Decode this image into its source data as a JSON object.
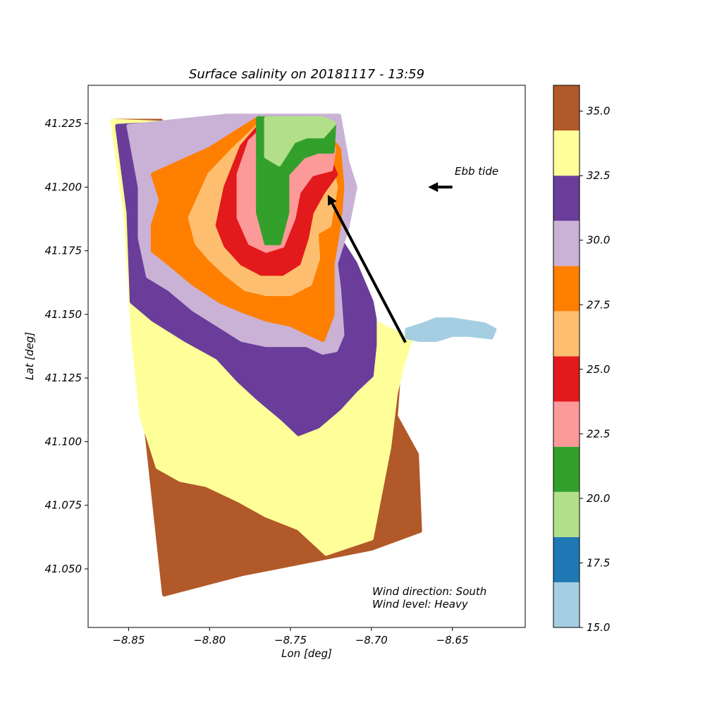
{
  "chart_data": {
    "type": "scatter",
    "title": "Surface salinity on 20181117 - 13:59",
    "xlabel": "Lon [deg]",
    "ylabel": "Lat [deg]",
    "xlim": [
      -8.875,
      -8.605
    ],
    "ylim": [
      41.027,
      41.24
    ],
    "xticks": [
      -8.85,
      -8.8,
      -8.75,
      -8.7,
      -8.65
    ],
    "xtick_labels": [
      "−8.85",
      "−8.80",
      "−8.75",
      "−8.70",
      "−8.65"
    ],
    "yticks": [
      41.05,
      41.075,
      41.1,
      41.125,
      41.15,
      41.175,
      41.2,
      41.225
    ],
    "ytick_labels": [
      "41.050",
      "41.075",
      "41.100",
      "41.125",
      "41.150",
      "41.175",
      "41.200",
      "41.225"
    ],
    "colorbar": {
      "ticks": [
        15.0,
        17.5,
        20.0,
        22.5,
        25.0,
        27.5,
        30.0,
        32.5,
        35.0
      ],
      "tick_labels": [
        "15.0",
        "17.5",
        "20.0",
        "22.5",
        "25.0",
        "27.5",
        "30.0",
        "32.5",
        "35.0"
      ],
      "bins": [
        {
          "from": 15.0,
          "to": 16.75,
          "color": "#a6cee3"
        },
        {
          "from": 16.75,
          "to": 18.5,
          "color": "#1f78b4"
        },
        {
          "from": 18.5,
          "to": 20.25,
          "color": "#b2df8a"
        },
        {
          "from": 20.25,
          "to": 22.0,
          "color": "#33a02c"
        },
        {
          "from": 22.0,
          "to": 23.75,
          "color": "#fb9a99"
        },
        {
          "from": 23.75,
          "to": 25.5,
          "color": "#e31a1c"
        },
        {
          "from": 25.5,
          "to": 27.25,
          "color": "#fdbf6f"
        },
        {
          "from": 27.25,
          "to": 29.0,
          "color": "#ff7f00"
        },
        {
          "from": 29.0,
          "to": 30.75,
          "color": "#cab2d6"
        },
        {
          "from": 30.75,
          "to": 32.5,
          "color": "#6a3d9a"
        },
        {
          "from": 32.5,
          "to": 34.25,
          "color": "#ffff99"
        },
        {
          "from": 34.25,
          "to": 36.0,
          "color": "#b15928"
        }
      ]
    },
    "regions": [
      {
        "name": "brown-offshore",
        "value": 35.0,
        "color": "#b15928",
        "polygon": [
          [
            -8.86,
            41.226
          ],
          [
            -8.85,
            41.205
          ],
          [
            -8.845,
            41.14
          ],
          [
            -8.828,
            41.04
          ],
          [
            -8.78,
            41.048
          ],
          [
            -8.7,
            41.058
          ],
          [
            -8.67,
            41.065
          ],
          [
            -8.672,
            41.095
          ],
          [
            -8.685,
            41.11
          ],
          [
            -8.683,
            41.128
          ],
          [
            -8.69,
            41.135
          ],
          [
            -8.71,
            41.14
          ],
          [
            -8.74,
            41.16
          ],
          [
            -8.79,
            41.2
          ],
          [
            -8.83,
            41.226
          ]
        ]
      },
      {
        "name": "yellow-band",
        "value": 33.5,
        "color": "#ffff99",
        "polygon": [
          [
            -8.86,
            41.226
          ],
          [
            -8.852,
            41.19
          ],
          [
            -8.847,
            41.14
          ],
          [
            -8.842,
            41.11
          ],
          [
            -8.832,
            41.09
          ],
          [
            -8.818,
            41.085
          ],
          [
            -8.802,
            41.083
          ],
          [
            -8.782,
            41.077
          ],
          [
            -8.765,
            41.071
          ],
          [
            -8.745,
            41.066
          ],
          [
            -8.728,
            41.056
          ],
          [
            -8.7,
            41.062
          ],
          [
            -8.689,
            41.098
          ],
          [
            -8.685,
            41.119
          ],
          [
            -8.681,
            41.13
          ],
          [
            -8.676,
            41.14
          ],
          [
            -8.74,
            41.16
          ],
          [
            -8.82,
            41.225
          ]
        ]
      },
      {
        "name": "purple-band",
        "value": 31.5,
        "color": "#6a3d9a",
        "polygon": [
          [
            -8.857,
            41.224
          ],
          [
            -8.85,
            41.19
          ],
          [
            -8.848,
            41.155
          ],
          [
            -8.835,
            41.148
          ],
          [
            -8.815,
            41.14
          ],
          [
            -8.795,
            41.133
          ],
          [
            -8.782,
            41.124
          ],
          [
            -8.77,
            41.117
          ],
          [
            -8.755,
            41.109
          ],
          [
            -8.745,
            41.103
          ],
          [
            -8.733,
            41.106
          ],
          [
            -8.72,
            41.113
          ],
          [
            -8.71,
            41.12
          ],
          [
            -8.7,
            41.126
          ],
          [
            -8.698,
            41.138
          ],
          [
            -8.698,
            41.148
          ],
          [
            -8.7,
            41.155
          ],
          [
            -8.71,
            41.17
          ],
          [
            -8.74,
            41.2
          ],
          [
            -8.8,
            41.226
          ]
        ]
      },
      {
        "name": "lavender-band",
        "value": 29.9,
        "color": "#cab2d6",
        "polygon": [
          [
            -8.85,
            41.224
          ],
          [
            -8.843,
            41.2
          ],
          [
            -8.843,
            41.18
          ],
          [
            -8.838,
            41.165
          ],
          [
            -8.825,
            41.16
          ],
          [
            -8.81,
            41.152
          ],
          [
            -8.795,
            41.146
          ],
          [
            -8.78,
            41.14
          ],
          [
            -8.765,
            41.138
          ],
          [
            -8.74,
            41.138
          ],
          [
            -8.73,
            41.135
          ],
          [
            -8.722,
            41.136
          ],
          [
            -8.718,
            41.142
          ],
          [
            -8.72,
            41.16
          ],
          [
            -8.722,
            41.17
          ],
          [
            -8.715,
            41.184
          ],
          [
            -8.71,
            41.2
          ],
          [
            -8.715,
            41.21
          ],
          [
            -8.72,
            41.228
          ],
          [
            -8.79,
            41.228
          ]
        ]
      },
      {
        "name": "orange-band",
        "value": 28.1,
        "color": "#ff7f00",
        "polygon": [
          [
            -8.835,
            41.205
          ],
          [
            -8.83,
            41.195
          ],
          [
            -8.835,
            41.185
          ],
          [
            -8.835,
            41.175
          ],
          [
            -8.825,
            41.17
          ],
          [
            -8.81,
            41.162
          ],
          [
            -8.793,
            41.155
          ],
          [
            -8.778,
            41.151
          ],
          [
            -8.765,
            41.148
          ],
          [
            -8.75,
            41.146
          ],
          [
            -8.737,
            41.142
          ],
          [
            -8.73,
            41.14
          ],
          [
            -8.724,
            41.15
          ],
          [
            -8.724,
            41.17
          ],
          [
            -8.72,
            41.185
          ],
          [
            -8.718,
            41.2
          ],
          [
            -8.72,
            41.215
          ],
          [
            -8.735,
            41.226
          ],
          [
            -8.77,
            41.227
          ],
          [
            -8.8,
            41.215
          ]
        ]
      },
      {
        "name": "lightorange-band",
        "value": 26.4,
        "color": "#fdbf6f",
        "polygon": [
          [
            -8.812,
            41.188
          ],
          [
            -8.808,
            41.178
          ],
          [
            -8.8,
            41.172
          ],
          [
            -8.79,
            41.166
          ],
          [
            -8.778,
            41.16
          ],
          [
            -8.765,
            41.158
          ],
          [
            -8.75,
            41.158
          ],
          [
            -8.738,
            41.162
          ],
          [
            -8.733,
            41.172
          ],
          [
            -8.734,
            41.182
          ],
          [
            -8.726,
            41.185
          ],
          [
            -8.722,
            41.2
          ],
          [
            -8.727,
            41.215
          ],
          [
            -8.74,
            41.226
          ],
          [
            -8.765,
            41.227
          ],
          [
            -8.785,
            41.215
          ],
          [
            -8.8,
            41.205
          ]
        ]
      },
      {
        "name": "red-band",
        "value": 24.6,
        "color": "#e31a1c",
        "polygon": [
          [
            -8.795,
            41.185
          ],
          [
            -8.79,
            41.177
          ],
          [
            -8.78,
            41.17
          ],
          [
            -8.768,
            41.166
          ],
          [
            -8.755,
            41.166
          ],
          [
            -8.745,
            41.17
          ],
          [
            -8.74,
            41.18
          ],
          [
            -8.737,
            41.19
          ],
          [
            -8.73,
            41.198
          ],
          [
            -8.722,
            41.205
          ],
          [
            -8.73,
            41.217
          ],
          [
            -8.742,
            41.226
          ],
          [
            -8.765,
            41.227
          ],
          [
            -8.78,
            41.216
          ],
          [
            -8.79,
            41.2
          ]
        ]
      },
      {
        "name": "pink-band",
        "value": 22.9,
        "color": "#fb9a99",
        "polygon": [
          [
            -8.782,
            41.188
          ],
          [
            -8.775,
            41.178
          ],
          [
            -8.765,
            41.175
          ],
          [
            -8.755,
            41.177
          ],
          [
            -8.748,
            41.188
          ],
          [
            -8.745,
            41.198
          ],
          [
            -8.737,
            41.205
          ],
          [
            -8.725,
            41.207
          ],
          [
            -8.723,
            41.215
          ],
          [
            -8.735,
            41.226
          ],
          [
            -8.76,
            41.227
          ],
          [
            -8.775,
            41.218
          ],
          [
            -8.782,
            41.205
          ]
        ]
      },
      {
        "name": "green-band",
        "value": 21.1,
        "color": "#33a02c",
        "polygon": [
          [
            -8.77,
            41.19
          ],
          [
            -8.765,
            41.178
          ],
          [
            -8.757,
            41.178
          ],
          [
            -8.752,
            41.19
          ],
          [
            -8.752,
            41.205
          ],
          [
            -8.742,
            41.212
          ],
          [
            -8.733,
            41.214
          ],
          [
            -8.724,
            41.214
          ],
          [
            -8.723,
            41.225
          ],
          [
            -8.74,
            41.227
          ],
          [
            -8.77,
            41.227
          ]
        ]
      },
      {
        "name": "lightgreen-band",
        "value": 19.4,
        "color": "#b2df8a",
        "polygon": [
          [
            -8.765,
            41.212
          ],
          [
            -8.757,
            41.209
          ],
          [
            -8.748,
            41.218
          ],
          [
            -8.74,
            41.22
          ],
          [
            -8.73,
            41.22
          ],
          [
            -8.723,
            41.225
          ],
          [
            -8.73,
            41.227
          ],
          [
            -8.765,
            41.227
          ]
        ]
      },
      {
        "name": "estuary-plume",
        "value": 15.8,
        "color": "#a6cee3",
        "polygon": [
          [
            -8.678,
            41.144
          ],
          [
            -8.668,
            41.146
          ],
          [
            -8.66,
            41.148
          ],
          [
            -8.65,
            41.148
          ],
          [
            -8.64,
            41.147
          ],
          [
            -8.63,
            41.146
          ],
          [
            -8.624,
            41.144
          ],
          [
            -8.626,
            41.141
          ],
          [
            -8.64,
            41.142
          ],
          [
            -8.65,
            41.142
          ],
          [
            -8.66,
            41.14
          ],
          [
            -8.67,
            41.14
          ],
          [
            -8.678,
            41.141
          ]
        ]
      }
    ],
    "arrows": [
      {
        "name": "wind-arrow",
        "from": [
          -8.679,
          41.139
        ],
        "to": [
          -8.727,
          41.197
        ]
      },
      {
        "name": "ebb-tide-arrow",
        "from": [
          -8.65,
          41.2
        ],
        "to": [
          -8.665,
          41.2
        ]
      }
    ],
    "annotations": {
      "ebb_tide": "Ebb tide",
      "wind_direction": "Wind direction: South",
      "wind_level": "Wind level: Heavy"
    }
  }
}
